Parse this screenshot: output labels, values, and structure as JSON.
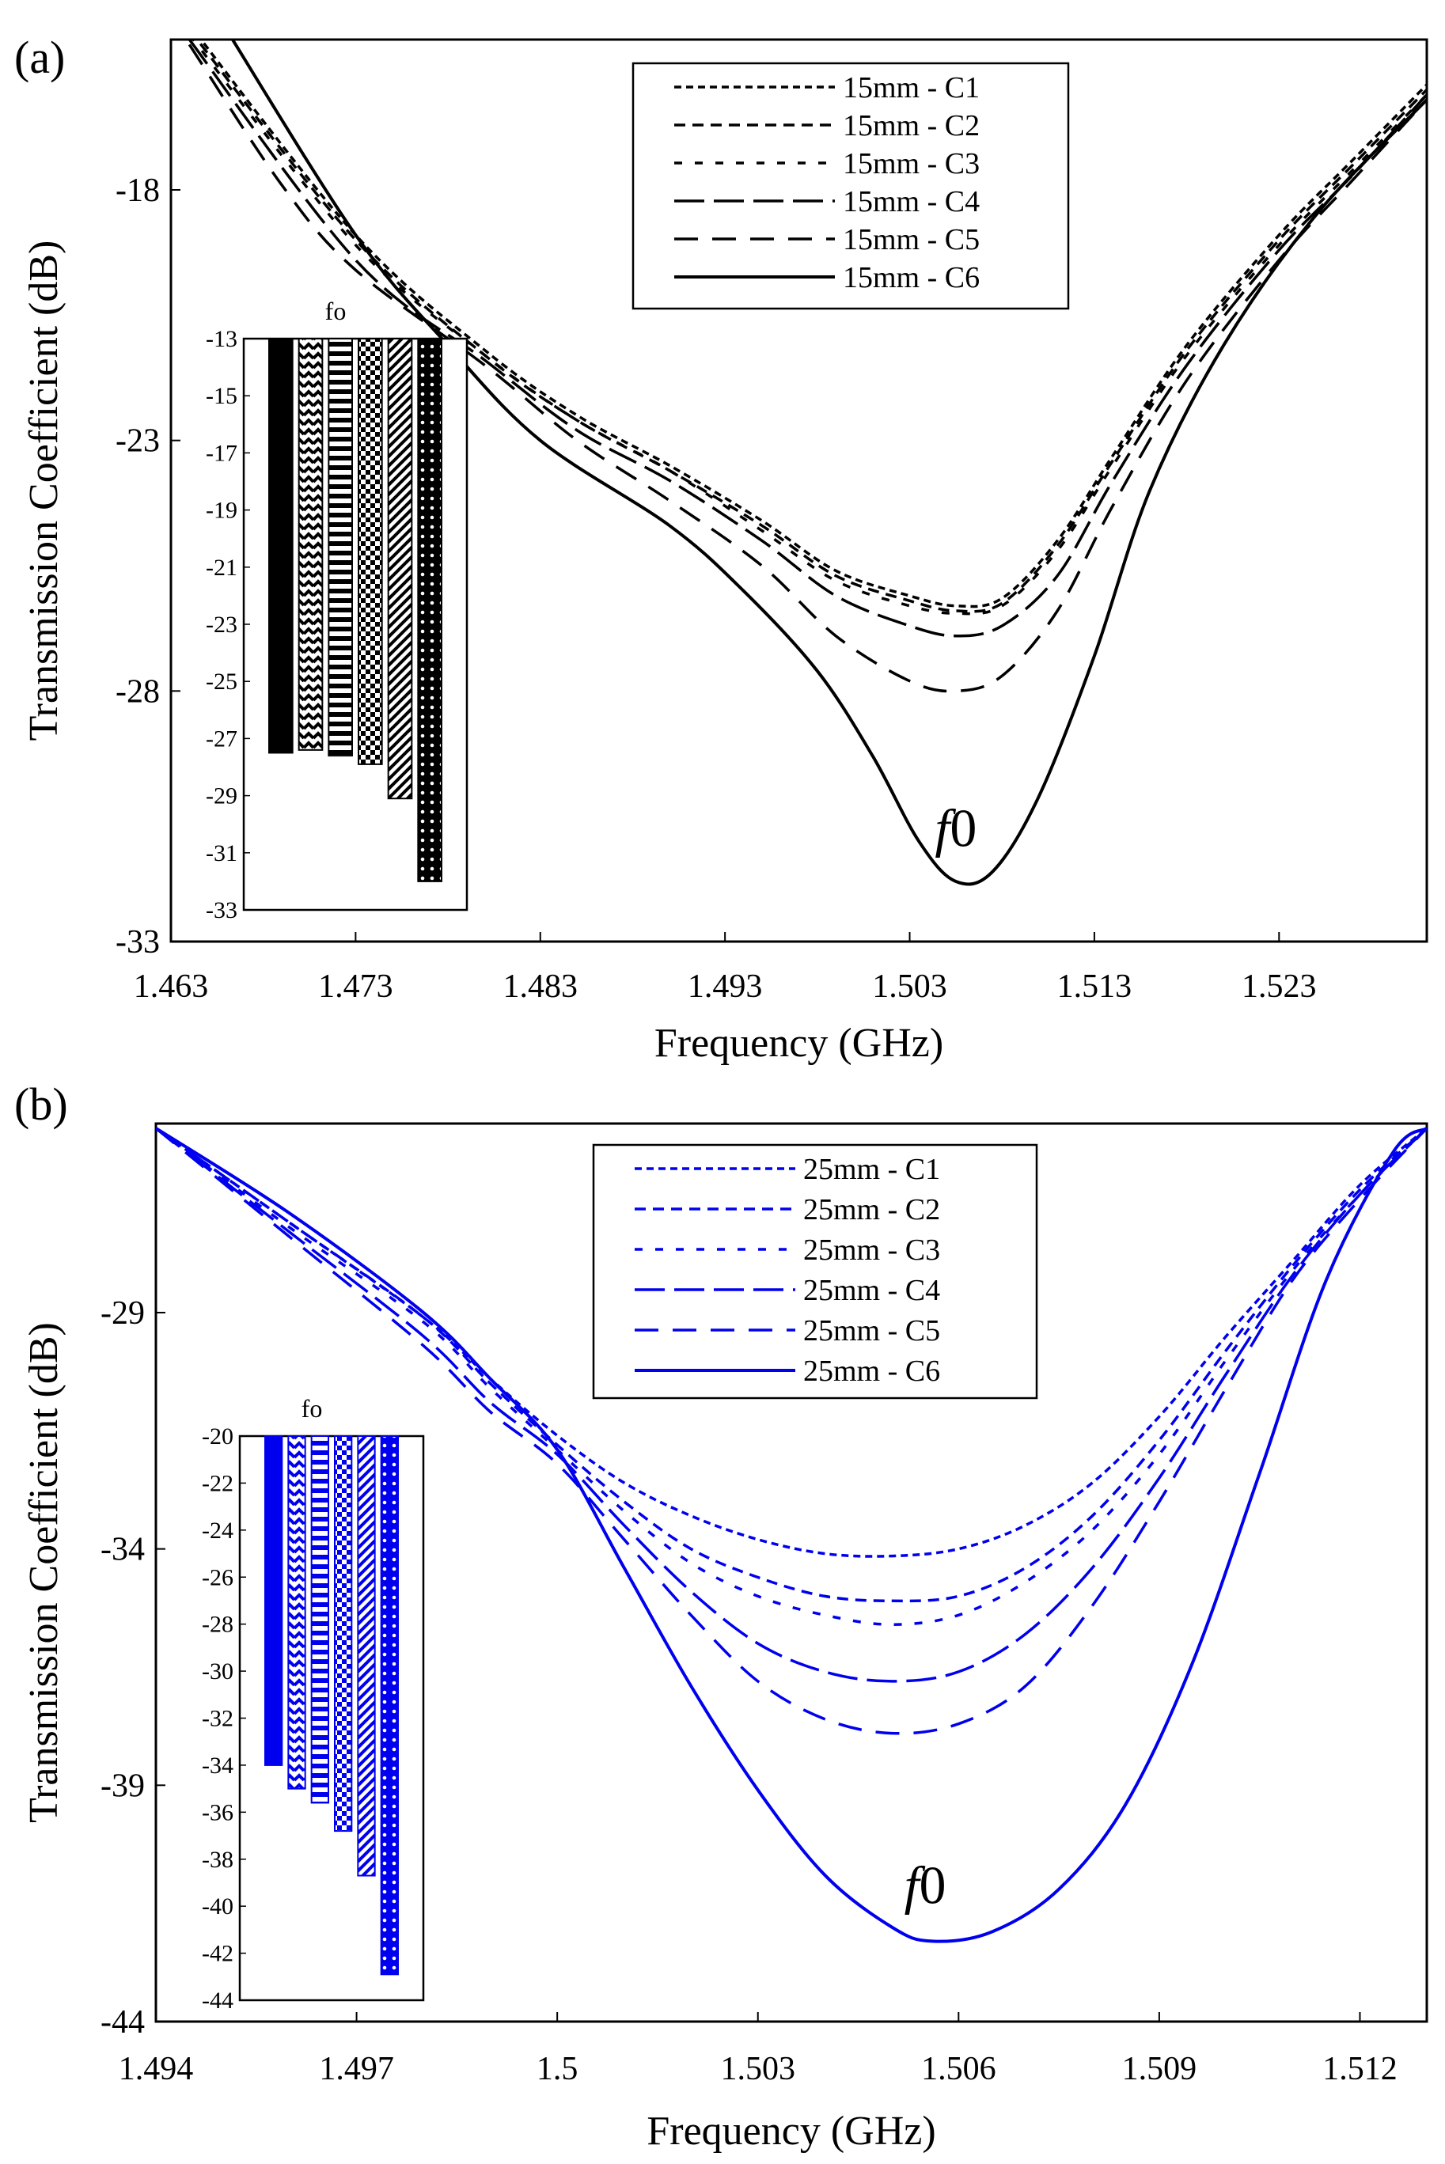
{
  "chart_data": [
    {
      "type": "line",
      "panel_label": "(a)",
      "color": "#000000",
      "xlabel": "Frequency (GHz)",
      "ylabel": "Transmission Coefficient (dB)",
      "xlim": [
        1.463,
        1.531
      ],
      "ylim": [
        -33,
        -15
      ],
      "xticks": [
        "1.463",
        "1.473",
        "1.483",
        "1.493",
        "1.503",
        "1.513",
        "1.523"
      ],
      "yticks": [
        "-18",
        "-23",
        "-28",
        "-33"
      ],
      "legend_position": "top-right",
      "annotation": {
        "italic": "f",
        "plain": "0",
        "x": 1.5055,
        "y": -31.1
      },
      "series": [
        {
          "name": "15mm - C1",
          "dash": "short",
          "points": [
            [
              1.464,
              -14.7
            ],
            [
              1.473,
              -18.9
            ],
            [
              1.48,
              -21.2
            ],
            [
              1.485,
              -22.5
            ],
            [
              1.49,
              -23.5
            ],
            [
              1.495,
              -24.6
            ],
            [
              1.499,
              -25.6
            ],
            [
              1.503,
              -26.1
            ],
            [
              1.5055,
              -26.3
            ],
            [
              1.508,
              -26.15
            ],
            [
              1.511,
              -25.0
            ],
            [
              1.514,
              -23.3
            ],
            [
              1.518,
              -21.1
            ],
            [
              1.523,
              -18.9
            ],
            [
              1.527,
              -17.4
            ],
            [
              1.531,
              -15.9
            ]
          ]
        },
        {
          "name": "15mm - C2",
          "dash": "medium",
          "points": [
            [
              1.464,
              -14.8
            ],
            [
              1.473,
              -19.0
            ],
            [
              1.48,
              -21.3
            ],
            [
              1.485,
              -22.6
            ],
            [
              1.49,
              -23.6
            ],
            [
              1.495,
              -24.7
            ],
            [
              1.499,
              -25.7
            ],
            [
              1.503,
              -26.2
            ],
            [
              1.5055,
              -26.4
            ],
            [
              1.508,
              -26.25
            ],
            [
              1.511,
              -25.1
            ],
            [
              1.514,
              -23.4
            ],
            [
              1.518,
              -21.2
            ],
            [
              1.523,
              -19.0
            ],
            [
              1.527,
              -17.5
            ],
            [
              1.531,
              -16.0
            ]
          ]
        },
        {
          "name": "15mm - C3",
          "dash": "spaced",
          "points": [
            [
              1.464,
              -14.9
            ],
            [
              1.473,
              -19.1
            ],
            [
              1.48,
              -21.3
            ],
            [
              1.485,
              -22.6
            ],
            [
              1.49,
              -23.6
            ],
            [
              1.495,
              -24.8
            ],
            [
              1.499,
              -25.8
            ],
            [
              1.503,
              -26.3
            ],
            [
              1.5055,
              -26.45
            ],
            [
              1.508,
              -26.3
            ],
            [
              1.511,
              -25.2
            ],
            [
              1.514,
              -23.5
            ],
            [
              1.518,
              -21.3
            ],
            [
              1.523,
              -19.1
            ],
            [
              1.527,
              -17.6
            ],
            [
              1.531,
              -16.1
            ]
          ]
        },
        {
          "name": "15mm - C4",
          "dash": "long-gap",
          "points": [
            [
              1.464,
              -15.0
            ],
            [
              1.473,
              -19.4
            ],
            [
              1.48,
              -21.4
            ],
            [
              1.485,
              -22.8
            ],
            [
              1.49,
              -23.8
            ],
            [
              1.495,
              -25.0
            ],
            [
              1.499,
              -26.1
            ],
            [
              1.503,
              -26.7
            ],
            [
              1.5055,
              -26.9
            ],
            [
              1.508,
              -26.7
            ],
            [
              1.511,
              -25.7
            ],
            [
              1.514,
              -23.8
            ],
            [
              1.518,
              -21.5
            ],
            [
              1.523,
              -19.2
            ],
            [
              1.527,
              -17.7
            ],
            [
              1.531,
              -16.1
            ]
          ]
        },
        {
          "name": "15mm - C5",
          "dash": "long",
          "points": [
            [
              1.464,
              -15.1
            ],
            [
              1.469,
              -17.9
            ],
            [
              1.473,
              -19.6
            ],
            [
              1.48,
              -21.5
            ],
            [
              1.485,
              -23.0
            ],
            [
              1.49,
              -24.2
            ],
            [
              1.495,
              -25.5
            ],
            [
              1.499,
              -26.9
            ],
            [
              1.503,
              -27.8
            ],
            [
              1.5055,
              -28.0
            ],
            [
              1.508,
              -27.7
            ],
            [
              1.511,
              -26.4
            ],
            [
              1.514,
              -24.3
            ],
            [
              1.518,
              -21.8
            ],
            [
              1.523,
              -19.4
            ],
            [
              1.527,
              -17.8
            ],
            [
              1.531,
              -16.2
            ]
          ]
        },
        {
          "name": "15mm - C6",
          "dash": "solid",
          "points": [
            [
              1.466,
              -14.8
            ],
            [
              1.473,
              -18.9
            ],
            [
              1.478,
              -21.1
            ],
            [
              1.483,
              -23.0
            ],
            [
              1.49,
              -24.7
            ],
            [
              1.494,
              -26.0
            ],
            [
              1.498,
              -27.6
            ],
            [
              1.501,
              -29.3
            ],
            [
              1.5035,
              -31.0
            ],
            [
              1.5055,
              -31.8
            ],
            [
              1.5075,
              -31.6
            ],
            [
              1.51,
              -30.1
            ],
            [
              1.513,
              -27.3
            ],
            [
              1.516,
              -24.0
            ],
            [
              1.52,
              -21.1
            ],
            [
              1.525,
              -18.5
            ],
            [
              1.531,
              -16.2
            ]
          ]
        }
      ],
      "inset": {
        "title": "fo",
        "ylim": [
          -13,
          -33
        ],
        "yticks": [
          "-13",
          "-15",
          "-17",
          "-19",
          "-21",
          "-23",
          "-25",
          "-27",
          "-29",
          "-31",
          "-33"
        ],
        "categories": [
          "15mm - C1",
          "15mm - C2",
          "15mm - C3",
          "15mm - C4",
          "15mm - C5",
          "15mm - C6"
        ],
        "values": [
          -27.5,
          -27.4,
          -27.6,
          -27.9,
          -29.1,
          -32.0
        ]
      }
    },
    {
      "type": "line",
      "panel_label": "(b)",
      "color": "#0000ee",
      "xlabel": "Frequency (GHz)",
      "ylabel": "Transmission Coefficient (dB)",
      "xlim": [
        1.494,
        1.513
      ],
      "ylim": [
        -44,
        -25
      ],
      "xticks": [
        "1.494",
        "1.497",
        "1.5",
        "1.503",
        "1.506",
        "1.509",
        "1.512"
      ],
      "yticks": [
        "-29",
        "-34",
        "-39",
        "-44"
      ],
      "legend_position": "top-right",
      "annotation": {
        "italic": "f",
        "plain": "0",
        "x": 1.5055,
        "y": -41.5
      },
      "series": [
        {
          "name": "25mm - C1",
          "dash": "short",
          "points": [
            [
              1.494,
              -25.1
            ],
            [
              1.496,
              -27.1
            ],
            [
              1.498,
              -29.1
            ],
            [
              1.499,
              -30.4
            ],
            [
              1.5,
              -31.6
            ],
            [
              1.501,
              -32.6
            ],
            [
              1.502,
              -33.3
            ],
            [
              1.503,
              -33.8
            ],
            [
              1.504,
              -34.1
            ],
            [
              1.505,
              -34.15
            ],
            [
              1.506,
              -34.0
            ],
            [
              1.507,
              -33.5
            ],
            [
              1.508,
              -32.6
            ],
            [
              1.509,
              -31.2
            ],
            [
              1.51,
              -29.5
            ],
            [
              1.511,
              -27.9
            ],
            [
              1.512,
              -26.3
            ],
            [
              1.513,
              -25.1
            ]
          ]
        },
        {
          "name": "25mm - C2",
          "dash": "medium",
          "points": [
            [
              1.494,
              -25.1
            ],
            [
              1.496,
              -27.1
            ],
            [
              1.498,
              -29.1
            ],
            [
              1.499,
              -30.5
            ],
            [
              1.5,
              -31.8
            ],
            [
              1.501,
              -33.0
            ],
            [
              1.502,
              -34.0
            ],
            [
              1.503,
              -34.6
            ],
            [
              1.504,
              -35.0
            ],
            [
              1.505,
              -35.1
            ],
            [
              1.506,
              -35.0
            ],
            [
              1.507,
              -34.4
            ],
            [
              1.508,
              -33.3
            ],
            [
              1.509,
              -31.7
            ],
            [
              1.51,
              -29.8
            ],
            [
              1.511,
              -28.0
            ],
            [
              1.512,
              -26.4
            ],
            [
              1.513,
              -25.1
            ]
          ]
        },
        {
          "name": "25mm - C3",
          "dash": "spaced",
          "points": [
            [
              1.494,
              -25.1
            ],
            [
              1.496,
              -27.2
            ],
            [
              1.498,
              -29.2
            ],
            [
              1.499,
              -30.6
            ],
            [
              1.5,
              -31.9
            ],
            [
              1.501,
              -33.2
            ],
            [
              1.502,
              -34.3
            ],
            [
              1.503,
              -35.0
            ],
            [
              1.504,
              -35.4
            ],
            [
              1.505,
              -35.6
            ],
            [
              1.506,
              -35.4
            ],
            [
              1.507,
              -34.7
            ],
            [
              1.508,
              -33.6
            ],
            [
              1.509,
              -32.0
            ],
            [
              1.51,
              -30.0
            ],
            [
              1.511,
              -28.1
            ],
            [
              1.512,
              -26.5
            ],
            [
              1.513,
              -25.1
            ]
          ]
        },
        {
          "name": "25mm - C4",
          "dash": "long-gap",
          "points": [
            [
              1.494,
              -25.1
            ],
            [
              1.496,
              -27.3
            ],
            [
              1.498,
              -29.5
            ],
            [
              1.499,
              -30.9
            ],
            [
              1.5,
              -32.0
            ],
            [
              1.501,
              -33.5
            ],
            [
              1.502,
              -34.9
            ],
            [
              1.503,
              -36.0
            ],
            [
              1.504,
              -36.6
            ],
            [
              1.505,
              -36.8
            ],
            [
              1.506,
              -36.6
            ],
            [
              1.507,
              -35.8
            ],
            [
              1.508,
              -34.4
            ],
            [
              1.509,
              -32.5
            ],
            [
              1.51,
              -30.3
            ],
            [
              1.511,
              -28.2
            ],
            [
              1.512,
              -26.5
            ],
            [
              1.513,
              -25.1
            ]
          ]
        },
        {
          "name": "25mm - C5",
          "dash": "long",
          "points": [
            [
              1.494,
              -25.1
            ],
            [
              1.496,
              -27.4
            ],
            [
              1.498,
              -29.7
            ],
            [
              1.499,
              -31.1
            ],
            [
              1.5,
              -32.2
            ],
            [
              1.501,
              -33.8
            ],
            [
              1.502,
              -35.4
            ],
            [
              1.503,
              -36.8
            ],
            [
              1.504,
              -37.6
            ],
            [
              1.505,
              -37.9
            ],
            [
              1.506,
              -37.7
            ],
            [
              1.507,
              -36.9
            ],
            [
              1.508,
              -35.2
            ],
            [
              1.509,
              -33.0
            ],
            [
              1.51,
              -30.6
            ],
            [
              1.511,
              -28.3
            ],
            [
              1.512,
              -26.6
            ],
            [
              1.513,
              -25.1
            ]
          ]
        },
        {
          "name": "25mm - C6",
          "dash": "solid",
          "points": [
            [
              1.494,
              -25.1
            ],
            [
              1.496,
              -26.9
            ],
            [
              1.498,
              -29.0
            ],
            [
              1.499,
              -30.4
            ],
            [
              1.5,
              -31.9
            ],
            [
              1.501,
              -34.4
            ],
            [
              1.502,
              -36.9
            ],
            [
              1.503,
              -39.1
            ],
            [
              1.504,
              -40.9
            ],
            [
              1.505,
              -42.0
            ],
            [
              1.5056,
              -42.3
            ],
            [
              1.5065,
              -42.1
            ],
            [
              1.5075,
              -41.2
            ],
            [
              1.5085,
              -39.4
            ],
            [
              1.5095,
              -36.4
            ],
            [
              1.5105,
              -32.4
            ],
            [
              1.5115,
              -28.3
            ],
            [
              1.5125,
              -25.6
            ],
            [
              1.513,
              -25.1
            ]
          ]
        }
      ],
      "inset": {
        "title": "fo",
        "ylim": [
          -20,
          -44
        ],
        "yticks": [
          "-20",
          "-22",
          "-24",
          "-26",
          "-28",
          "-30",
          "-32",
          "-34",
          "-36",
          "-38",
          "-40",
          "-42",
          "-44"
        ],
        "categories": [
          "25mm - C1",
          "25mm - C2",
          "25mm - C3",
          "25mm - C4",
          "25mm - C5",
          "25mm - C6"
        ],
        "values": [
          -34.0,
          -35.0,
          -35.6,
          -36.8,
          -38.7,
          -42.9
        ]
      }
    }
  ]
}
